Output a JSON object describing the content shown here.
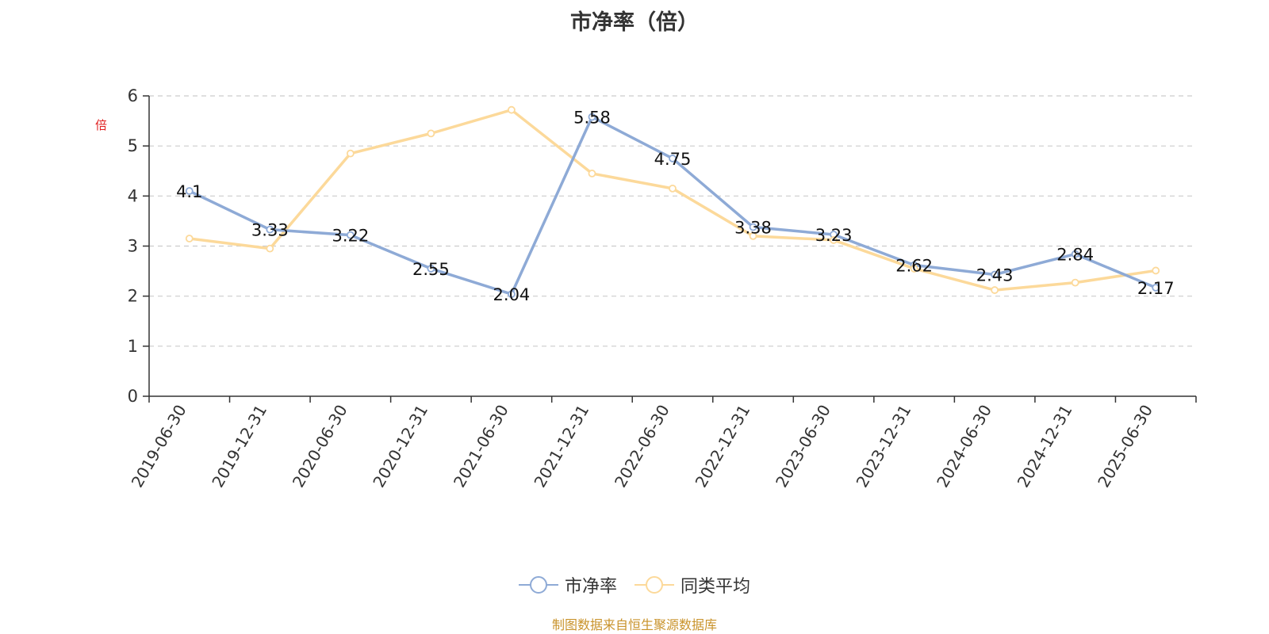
{
  "title": "市净率（倍）",
  "source_note": "制图数据来自恒生聚源数据库",
  "chart_data": {
    "type": "line",
    "title": "市净率（倍）",
    "ylabel": "倍",
    "xlabel": "",
    "ylim": [
      0,
      6
    ],
    "y_ticks": [
      0,
      1,
      2,
      3,
      4,
      5,
      6
    ],
    "grid": true,
    "legend_position": "bottom-center",
    "categories": [
      "2019-06-30",
      "2019-12-31",
      "2020-06-30",
      "2020-12-31",
      "2021-06-30",
      "2021-12-31",
      "2022-06-30",
      "2022-12-31",
      "2023-06-30",
      "2023-12-31",
      "2024-06-30",
      "2024-12-31",
      "2025-06-30"
    ],
    "series": [
      {
        "name": "市净率",
        "color": "#8eaad6",
        "show_labels": true,
        "values": [
          4.1,
          3.33,
          3.22,
          2.55,
          2.04,
          5.58,
          4.75,
          3.38,
          3.23,
          2.62,
          2.43,
          2.84,
          2.17
        ]
      },
      {
        "name": "同类平均",
        "color": "#fcd99a",
        "show_labels": false,
        "values": [
          3.15,
          2.95,
          4.85,
          5.25,
          5.72,
          4.45,
          4.15,
          3.2,
          3.12,
          2.55,
          2.12,
          2.27,
          2.51
        ]
      }
    ]
  }
}
